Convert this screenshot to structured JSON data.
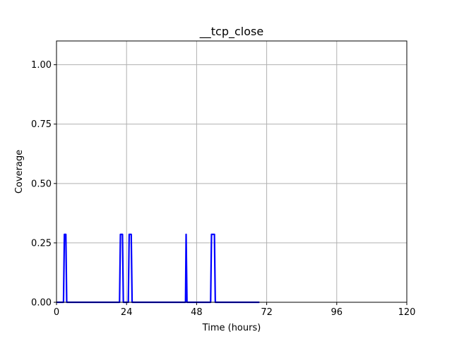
{
  "chart_data": {
    "type": "line",
    "title": "__tcp_close",
    "xlabel": "Time (hours)",
    "ylabel": "Coverage",
    "xlim": [
      0,
      120
    ],
    "ylim": [
      0,
      1.1
    ],
    "xticks": [
      0,
      24,
      48,
      72,
      96,
      120
    ],
    "yticks": [
      0.0,
      0.25,
      0.5,
      0.75,
      1.0
    ],
    "xtick_labels": [
      "0",
      "24",
      "48",
      "72",
      "96",
      "120"
    ],
    "ytick_labels": [
      "0.00",
      "0.25",
      "0.50",
      "0.75",
      "1.00"
    ],
    "grid": true,
    "line_color": "#0000ff",
    "series": [
      {
        "x": [
          0,
          2.4,
          2.7,
          3.2,
          3.5,
          21.6,
          21.9,
          22.6,
          22.9,
          24.6,
          24.9,
          25.6,
          25.9,
          44.2,
          44.4,
          44.7,
          52.8,
          53.1,
          54.1,
          54.4,
          69.5
        ],
        "y": [
          0,
          0,
          0.286,
          0.286,
          0,
          0,
          0.286,
          0.286,
          0,
          0,
          0.286,
          0.286,
          0,
          0,
          0.286,
          0,
          0,
          0.286,
          0.286,
          0,
          0
        ]
      }
    ]
  }
}
